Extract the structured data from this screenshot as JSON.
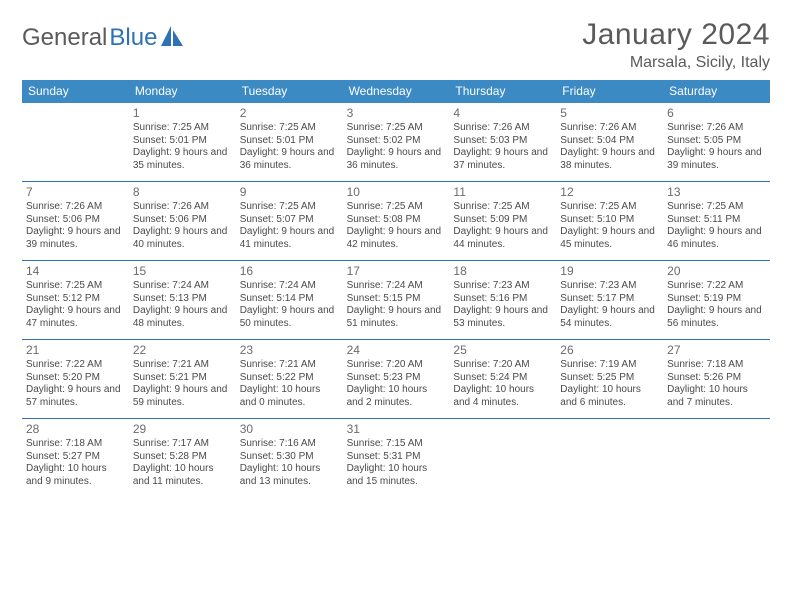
{
  "brand": {
    "part1": "General",
    "part2": "Blue"
  },
  "title": "January 2024",
  "location": "Marsala, Sicily, Italy",
  "colors": {
    "header_bg": "#3b8ac4",
    "accent": "#2d72b5",
    "text": "#4a4a4a",
    "bg": "#ffffff"
  },
  "weekdays": [
    "Sunday",
    "Monday",
    "Tuesday",
    "Wednesday",
    "Thursday",
    "Friday",
    "Saturday"
  ],
  "weeks": [
    [
      {
        "day": "",
        "sunrise": "",
        "sunset": "",
        "daylight": ""
      },
      {
        "day": "1",
        "sunrise": "Sunrise: 7:25 AM",
        "sunset": "Sunset: 5:01 PM",
        "daylight": "Daylight: 9 hours and 35 minutes."
      },
      {
        "day": "2",
        "sunrise": "Sunrise: 7:25 AM",
        "sunset": "Sunset: 5:01 PM",
        "daylight": "Daylight: 9 hours and 36 minutes."
      },
      {
        "day": "3",
        "sunrise": "Sunrise: 7:25 AM",
        "sunset": "Sunset: 5:02 PM",
        "daylight": "Daylight: 9 hours and 36 minutes."
      },
      {
        "day": "4",
        "sunrise": "Sunrise: 7:26 AM",
        "sunset": "Sunset: 5:03 PM",
        "daylight": "Daylight: 9 hours and 37 minutes."
      },
      {
        "day": "5",
        "sunrise": "Sunrise: 7:26 AM",
        "sunset": "Sunset: 5:04 PM",
        "daylight": "Daylight: 9 hours and 38 minutes."
      },
      {
        "day": "6",
        "sunrise": "Sunrise: 7:26 AM",
        "sunset": "Sunset: 5:05 PM",
        "daylight": "Daylight: 9 hours and 39 minutes."
      }
    ],
    [
      {
        "day": "7",
        "sunrise": "Sunrise: 7:26 AM",
        "sunset": "Sunset: 5:06 PM",
        "daylight": "Daylight: 9 hours and 39 minutes."
      },
      {
        "day": "8",
        "sunrise": "Sunrise: 7:26 AM",
        "sunset": "Sunset: 5:06 PM",
        "daylight": "Daylight: 9 hours and 40 minutes."
      },
      {
        "day": "9",
        "sunrise": "Sunrise: 7:25 AM",
        "sunset": "Sunset: 5:07 PM",
        "daylight": "Daylight: 9 hours and 41 minutes."
      },
      {
        "day": "10",
        "sunrise": "Sunrise: 7:25 AM",
        "sunset": "Sunset: 5:08 PM",
        "daylight": "Daylight: 9 hours and 42 minutes."
      },
      {
        "day": "11",
        "sunrise": "Sunrise: 7:25 AM",
        "sunset": "Sunset: 5:09 PM",
        "daylight": "Daylight: 9 hours and 44 minutes."
      },
      {
        "day": "12",
        "sunrise": "Sunrise: 7:25 AM",
        "sunset": "Sunset: 5:10 PM",
        "daylight": "Daylight: 9 hours and 45 minutes."
      },
      {
        "day": "13",
        "sunrise": "Sunrise: 7:25 AM",
        "sunset": "Sunset: 5:11 PM",
        "daylight": "Daylight: 9 hours and 46 minutes."
      }
    ],
    [
      {
        "day": "14",
        "sunrise": "Sunrise: 7:25 AM",
        "sunset": "Sunset: 5:12 PM",
        "daylight": "Daylight: 9 hours and 47 minutes."
      },
      {
        "day": "15",
        "sunrise": "Sunrise: 7:24 AM",
        "sunset": "Sunset: 5:13 PM",
        "daylight": "Daylight: 9 hours and 48 minutes."
      },
      {
        "day": "16",
        "sunrise": "Sunrise: 7:24 AM",
        "sunset": "Sunset: 5:14 PM",
        "daylight": "Daylight: 9 hours and 50 minutes."
      },
      {
        "day": "17",
        "sunrise": "Sunrise: 7:24 AM",
        "sunset": "Sunset: 5:15 PM",
        "daylight": "Daylight: 9 hours and 51 minutes."
      },
      {
        "day": "18",
        "sunrise": "Sunrise: 7:23 AM",
        "sunset": "Sunset: 5:16 PM",
        "daylight": "Daylight: 9 hours and 53 minutes."
      },
      {
        "day": "19",
        "sunrise": "Sunrise: 7:23 AM",
        "sunset": "Sunset: 5:17 PM",
        "daylight": "Daylight: 9 hours and 54 minutes."
      },
      {
        "day": "20",
        "sunrise": "Sunrise: 7:22 AM",
        "sunset": "Sunset: 5:19 PM",
        "daylight": "Daylight: 9 hours and 56 minutes."
      }
    ],
    [
      {
        "day": "21",
        "sunrise": "Sunrise: 7:22 AM",
        "sunset": "Sunset: 5:20 PM",
        "daylight": "Daylight: 9 hours and 57 minutes."
      },
      {
        "day": "22",
        "sunrise": "Sunrise: 7:21 AM",
        "sunset": "Sunset: 5:21 PM",
        "daylight": "Daylight: 9 hours and 59 minutes."
      },
      {
        "day": "23",
        "sunrise": "Sunrise: 7:21 AM",
        "sunset": "Sunset: 5:22 PM",
        "daylight": "Daylight: 10 hours and 0 minutes."
      },
      {
        "day": "24",
        "sunrise": "Sunrise: 7:20 AM",
        "sunset": "Sunset: 5:23 PM",
        "daylight": "Daylight: 10 hours and 2 minutes."
      },
      {
        "day": "25",
        "sunrise": "Sunrise: 7:20 AM",
        "sunset": "Sunset: 5:24 PM",
        "daylight": "Daylight: 10 hours and 4 minutes."
      },
      {
        "day": "26",
        "sunrise": "Sunrise: 7:19 AM",
        "sunset": "Sunset: 5:25 PM",
        "daylight": "Daylight: 10 hours and 6 minutes."
      },
      {
        "day": "27",
        "sunrise": "Sunrise: 7:18 AM",
        "sunset": "Sunset: 5:26 PM",
        "daylight": "Daylight: 10 hours and 7 minutes."
      }
    ],
    [
      {
        "day": "28",
        "sunrise": "Sunrise: 7:18 AM",
        "sunset": "Sunset: 5:27 PM",
        "daylight": "Daylight: 10 hours and 9 minutes."
      },
      {
        "day": "29",
        "sunrise": "Sunrise: 7:17 AM",
        "sunset": "Sunset: 5:28 PM",
        "daylight": "Daylight: 10 hours and 11 minutes."
      },
      {
        "day": "30",
        "sunrise": "Sunrise: 7:16 AM",
        "sunset": "Sunset: 5:30 PM",
        "daylight": "Daylight: 10 hours and 13 minutes."
      },
      {
        "day": "31",
        "sunrise": "Sunrise: 7:15 AM",
        "sunset": "Sunset: 5:31 PM",
        "daylight": "Daylight: 10 hours and 15 minutes."
      },
      {
        "day": "",
        "sunrise": "",
        "sunset": "",
        "daylight": ""
      },
      {
        "day": "",
        "sunrise": "",
        "sunset": "",
        "daylight": ""
      },
      {
        "day": "",
        "sunrise": "",
        "sunset": "",
        "daylight": ""
      }
    ]
  ]
}
